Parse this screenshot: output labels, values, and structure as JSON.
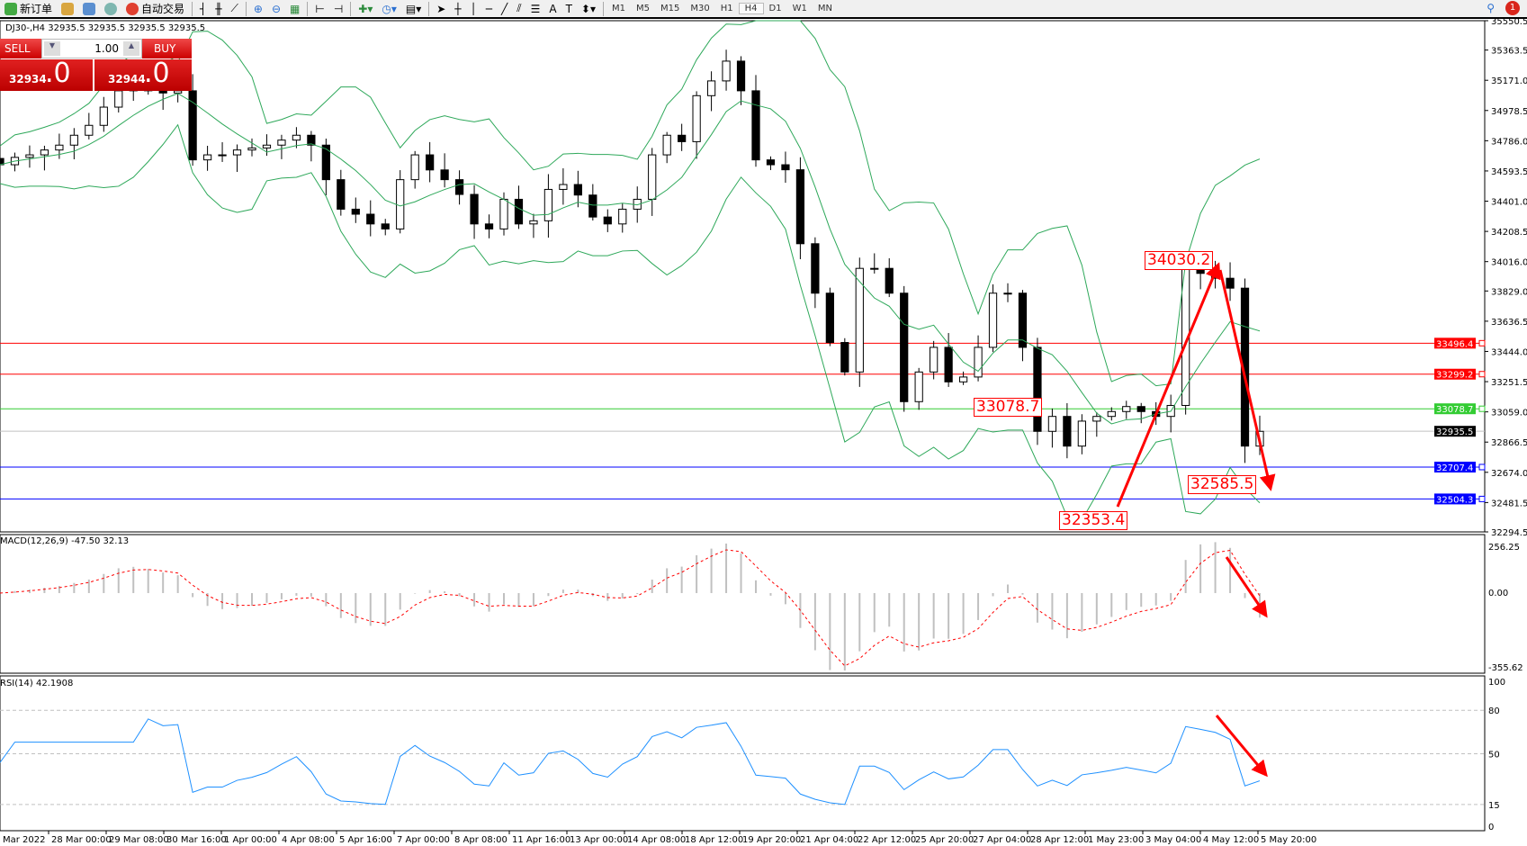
{
  "toolbar": {
    "new_order": "新订单",
    "auto_trading": "自动交易",
    "timeframes": [
      "M1",
      "M5",
      "M15",
      "M30",
      "H1",
      "H4",
      "D1",
      "W1",
      "MN"
    ],
    "active_timeframe": "H4",
    "notification_count": "1"
  },
  "symbol_line": "DJ30-,H4  32935.5 32935.5 32935.5 32935.5",
  "trade_panel": {
    "sell_label": "SELL",
    "buy_label": "BUY",
    "lot": "1.00",
    "sell_price_main": "32934",
    "sell_price_frac": ".0",
    "buy_price_main": "32944",
    "buy_price_frac": ".0"
  },
  "chart_data": {
    "type": "candlestick",
    "symbol": "DJ30-",
    "timeframe": "H4",
    "ylim": [
      32294.5,
      35550.5
    ],
    "price_ticks": [
      "35550.5",
      "35363.5",
      "35171.0",
      "34978.5",
      "34786.0",
      "34593.5",
      "34401.0",
      "34208.5",
      "34016.0",
      "33829.0",
      "33636.5",
      "33444.0",
      "33251.5",
      "33059.0",
      "32866.5",
      "32674.0",
      "32481.5",
      "32294.5"
    ],
    "time_ticks": [
      "Mar 2022",
      "28 Mar 00:00",
      "29 Mar 08:00",
      "30 Mar 16:00",
      "1 Apr 00:00",
      "4 Apr 08:00",
      "5 Apr 16:00",
      "7 Apr 00:00",
      "8 Apr 08:00",
      "11 Apr 16:00",
      "13 Apr 00:00",
      "14 Apr 08:00",
      "18 Apr 12:00",
      "19 Apr 20:00",
      "21 Apr 04:00",
      "22 Apr 12:00",
      "25 Apr 20:00",
      "27 Apr 04:00",
      "28 Apr 12:00",
      "1 May 23:00",
      "3 May 04:00",
      "4 May 12:00",
      "5 May 20:00"
    ],
    "closes": [
      34633,
      34680,
      34696,
      34727,
      34758,
      34821,
      34884,
      35000,
      35104,
      35120,
      35104,
      35090,
      35104,
      34664,
      34696,
      34696,
      34727,
      34740,
      34758,
      34790,
      34821,
      34758,
      34538,
      34350,
      34318,
      34256,
      34224,
      34538,
      34696,
      34600,
      34538,
      34444,
      34256,
      34224,
      34413,
      34256,
      34276,
      34476,
      34507,
      34440,
      34300,
      34256,
      34350,
      34413,
      34696,
      34821,
      34780,
      35073,
      35167,
      35293,
      35104,
      34664,
      34633,
      34601,
      34130,
      33815,
      33501,
      33313,
      33973,
      33973,
      33815,
      33124,
      33313,
      33470,
      33250,
      33281,
      33470,
      33815,
      33815,
      33470,
      32935,
      33030,
      32841,
      33000,
      33030,
      33061,
      33093,
      33061,
      33030,
      33100,
      33973,
      33941,
      33910,
      33847,
      32841,
      32935
    ],
    "current_price": "32935.5",
    "horizontal_lines": [
      {
        "price": "33496.4",
        "color": "#ff0000"
      },
      {
        "price": "33299.2",
        "color": "#ff0000"
      },
      {
        "price": "33078.7",
        "color": "#33cc33"
      },
      {
        "price": "32707.4",
        "color": "#0000ff"
      },
      {
        "price": "32504.3",
        "color": "#0000ff"
      }
    ],
    "annotations": [
      "34030.2",
      "33078.7",
      "32585.5",
      "32353.4"
    ],
    "macd": {
      "label": "MACD(12,26,9) -47.50 32.13",
      "ticks": [
        "256.25",
        "0.00",
        "-355.62"
      ],
      "ylim": [
        -355.62,
        256.25
      ]
    },
    "rsi": {
      "label": "RSI(14) 42.1908",
      "ticks": [
        "100",
        "80",
        "50",
        "15",
        "0"
      ],
      "levels": [
        80,
        50,
        15
      ]
    },
    "colors": {
      "bands": "#2ea85a",
      "macd_hist": "#c0c0c0",
      "macd_signal": "#ff0000",
      "rsi": "#1e90ff",
      "arrow": "#ff0000"
    }
  }
}
